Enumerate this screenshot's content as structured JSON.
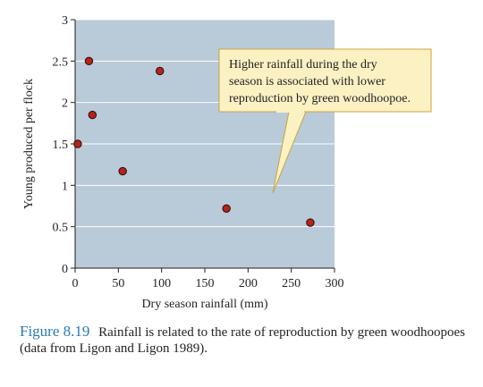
{
  "chart_data": {
    "type": "scatter",
    "xlabel": "Dry season rainfall (mm)",
    "ylabel": "Young produced per flock",
    "xlim": [
      0,
      300
    ],
    "ylim": [
      0,
      3
    ],
    "x_ticks": [
      "0",
      "50",
      "100",
      "150",
      "200",
      "250",
      "300"
    ],
    "y_ticks": [
      "0",
      "0.5",
      "1",
      "1.5",
      "2",
      "2.5",
      "3"
    ],
    "grid": true,
    "points": [
      {
        "x": 3,
        "y": 1.5
      },
      {
        "x": 16,
        "y": 2.5
      },
      {
        "x": 20,
        "y": 1.85
      },
      {
        "x": 55,
        "y": 1.17
      },
      {
        "x": 98,
        "y": 2.38
      },
      {
        "x": 175,
        "y": 0.72
      },
      {
        "x": 272,
        "y": 0.55
      }
    ],
    "annotation": "Higher rainfall during the dry season is associated with lower reproduction by green woodhoopoe.",
    "colors": {
      "plot_background": "#b9cad9",
      "point_fill": "#b5231b",
      "callout_fill": "#fbf1c3",
      "callout_border": "#c8a640"
    }
  },
  "caption": {
    "figure_label": "Figure 8.19",
    "text": "Rainfall is related to the rate of reproduction by green woodhoopoes (data from Ligon and Ligon 1989)."
  }
}
